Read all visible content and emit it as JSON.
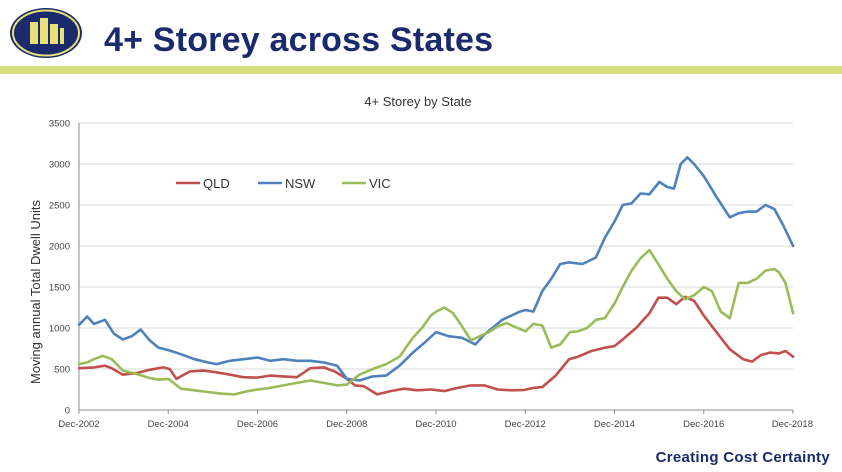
{
  "slide": {
    "title": "4+ Storey across States",
    "footer": "Creating Cost Certainty",
    "band_color": "#d9df7c",
    "title_color": "#1a2a6c",
    "logo_color": "#1a2a6c",
    "logo_accent": "#e9e07a"
  },
  "chart_data": {
    "type": "line",
    "title": "4+ Storey by State",
    "xlabel": "",
    "ylabel": "Moving annual Total Dwell Units",
    "ylim": [
      0,
      3500
    ],
    "yticks": [
      0,
      500,
      1000,
      1500,
      2000,
      2500,
      3000,
      3500
    ],
    "xlim": [
      2002.917,
      2018.917
    ],
    "xticks": [
      {
        "x": 2002.917,
        "label": "Dec-2002"
      },
      {
        "x": 2004.917,
        "label": "Dec-2004"
      },
      {
        "x": 2006.917,
        "label": "Dec-2006"
      },
      {
        "x": 2008.917,
        "label": "Dec-2008"
      },
      {
        "x": 2010.917,
        "label": "Dec-2010"
      },
      {
        "x": 2012.917,
        "label": "Dec-2012"
      },
      {
        "x": 2014.917,
        "label": "Dec-2014"
      },
      {
        "x": 2016.917,
        "label": "Dec-2016"
      },
      {
        "x": 2018.917,
        "label": "Dec-2018"
      }
    ],
    "grid": true,
    "legend_position": "top-left",
    "series": [
      {
        "name": "QLD",
        "color": "#c0504d",
        "x": [
          2002.92,
          2003.25,
          2003.5,
          2003.65,
          2003.9,
          2004.2,
          2004.5,
          2004.8,
          2004.95,
          2005.1,
          2005.4,
          2005.7,
          2006.0,
          2006.3,
          2006.6,
          2006.9,
          2007.2,
          2007.5,
          2007.8,
          2008.1,
          2008.4,
          2008.65,
          2008.92,
          2009.1,
          2009.3,
          2009.6,
          2009.9,
          2010.2,
          2010.5,
          2010.8,
          2011.1,
          2011.4,
          2011.7,
          2012.0,
          2012.3,
          2012.6,
          2012.9,
          2013.1,
          2013.3,
          2013.6,
          2013.9,
          2014.1,
          2014.4,
          2014.7,
          2014.92,
          2015.1,
          2015.4,
          2015.7,
          2015.9,
          2016.1,
          2016.3,
          2016.5,
          2016.7,
          2016.92,
          2017.2,
          2017.5,
          2017.8,
          2018.0,
          2018.2,
          2018.4,
          2018.6,
          2018.75,
          2018.92
        ],
        "values": [
          510,
          520,
          540,
          510,
          430,
          450,
          490,
          520,
          500,
          380,
          470,
          480,
          460,
          430,
          400,
          395,
          420,
          410,
          400,
          510,
          520,
          470,
          380,
          300,
          290,
          190,
          230,
          260,
          240,
          250,
          230,
          270,
          300,
          300,
          250,
          240,
          245,
          270,
          280,
          420,
          620,
          650,
          720,
          760,
          780,
          860,
          1000,
          1180,
          1370,
          1370,
          1290,
          1380,
          1330,
          1150,
          950,
          740,
          620,
          590,
          670,
          700,
          690,
          720,
          650
        ]
      },
      {
        "name": "NSW",
        "color": "#4f81bd",
        "x": [
          2002.92,
          2003.1,
          2003.25,
          2003.5,
          2003.7,
          2003.9,
          2004.1,
          2004.3,
          2004.5,
          2004.7,
          2004.92,
          2005.2,
          2005.5,
          2005.8,
          2006.0,
          2006.3,
          2006.6,
          2006.92,
          2007.2,
          2007.5,
          2007.8,
          2008.1,
          2008.4,
          2008.7,
          2008.92,
          2009.2,
          2009.5,
          2009.8,
          2010.1,
          2010.4,
          2010.7,
          2010.92,
          2011.2,
          2011.5,
          2011.8,
          2012.0,
          2012.2,
          2012.4,
          2012.6,
          2012.8,
          2012.92,
          2013.1,
          2013.3,
          2013.5,
          2013.7,
          2013.9,
          2014.2,
          2014.5,
          2014.7,
          2014.92,
          2015.1,
          2015.3,
          2015.5,
          2015.7,
          2015.92,
          2016.1,
          2016.25,
          2016.4,
          2016.55,
          2016.7,
          2016.92,
          2017.2,
          2017.5,
          2017.7,
          2017.9,
          2018.1,
          2018.3,
          2018.5,
          2018.7,
          2018.92
        ],
        "values": [
          1040,
          1140,
          1050,
          1100,
          930,
          860,
          900,
          980,
          850,
          760,
          730,
          680,
          620,
          580,
          560,
          600,
          620,
          640,
          600,
          620,
          600,
          600,
          580,
          540,
          380,
          360,
          410,
          420,
          540,
          700,
          840,
          950,
          900,
          880,
          800,
          920,
          1010,
          1100,
          1150,
          1200,
          1220,
          1200,
          1450,
          1600,
          1780,
          1800,
          1780,
          1860,
          2100,
          2300,
          2500,
          2520,
          2640,
          2630,
          2780,
          2720,
          2700,
          3000,
          3080,
          3000,
          2850,
          2600,
          2350,
          2400,
          2420,
          2420,
          2500,
          2450,
          2250,
          2000
        ]
      },
      {
        "name": "VIC",
        "color": "#9bbb59",
        "x": [
          2002.92,
          2003.1,
          2003.25,
          2003.45,
          2003.65,
          2003.9,
          2004.2,
          2004.5,
          2004.7,
          2004.92,
          2005.2,
          2005.5,
          2005.8,
          2006.1,
          2006.4,
          2006.7,
          2006.92,
          2007.2,
          2007.5,
          2007.8,
          2008.1,
          2008.4,
          2008.7,
          2008.92,
          2009.2,
          2009.5,
          2009.8,
          2010.1,
          2010.4,
          2010.6,
          2010.8,
          2010.92,
          2011.1,
          2011.3,
          2011.5,
          2011.7,
          2011.9,
          2012.1,
          2012.3,
          2012.5,
          2012.7,
          2012.92,
          2013.1,
          2013.3,
          2013.5,
          2013.7,
          2013.92,
          2014.1,
          2014.3,
          2014.5,
          2014.7,
          2014.92,
          2015.1,
          2015.3,
          2015.5,
          2015.7,
          2015.92,
          2016.1,
          2016.3,
          2016.5,
          2016.7,
          2016.92,
          2017.1,
          2017.3,
          2017.5,
          2017.7,
          2017.9,
          2018.1,
          2018.3,
          2018.5,
          2018.6,
          2018.75,
          2018.92
        ],
        "values": [
          560,
          580,
          620,
          660,
          620,
          480,
          440,
          390,
          370,
          380,
          260,
          240,
          220,
          200,
          190,
          230,
          250,
          270,
          300,
          330,
          360,
          330,
          300,
          310,
          430,
          500,
          560,
          650,
          880,
          1000,
          1150,
          1200,
          1250,
          1180,
          1020,
          850,
          900,
          950,
          1020,
          1060,
          1010,
          960,
          1050,
          1030,
          760,
          800,
          950,
          960,
          1000,
          1100,
          1120,
          1300,
          1500,
          1700,
          1850,
          1950,
          1760,
          1600,
          1450,
          1350,
          1400,
          1500,
          1450,
          1200,
          1120,
          1550,
          1550,
          1600,
          1700,
          1720,
          1680,
          1550,
          1180
        ]
      }
    ]
  }
}
